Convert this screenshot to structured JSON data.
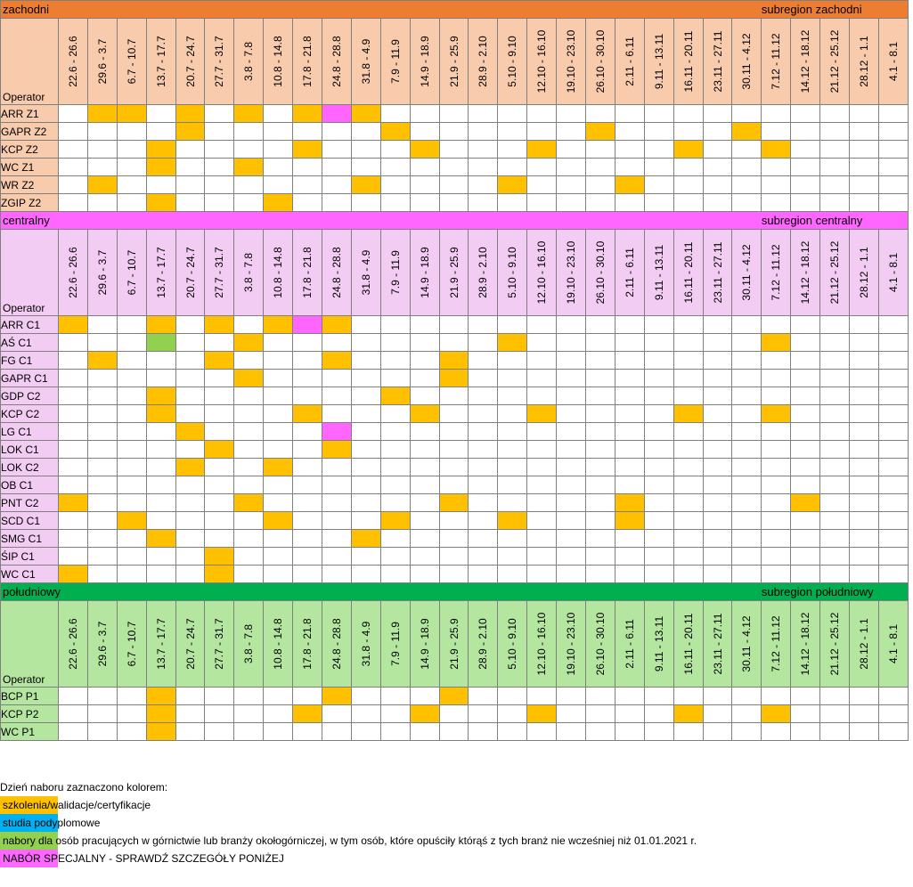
{
  "colors": {
    "orange": "#ffc000",
    "pink": "#ff66ff",
    "green": "#92d050",
    "blue": "#00b0f0",
    "zach_header": "#ed7d31",
    "zach_light": "#f8cbad",
    "cent_header": "#ff66ff",
    "cent_light": "#f2ccf2",
    "pol_header": "#00b050",
    "pol_light": "#b4e6a0"
  },
  "operator_label": "Operator",
  "dates": [
    "22.6 - 26.6",
    "29.6 - 3.7",
    "6.7 - 10.7",
    "13.7 - 17.7",
    "20.7 - 24.7",
    "27.7 - 31.7",
    "3.8 - 7.8",
    "10.8 - 14.8",
    "17.8 - 21.8",
    "24.8 - 28.8",
    "31.8 - 4.9",
    "7.9 - 11.9",
    "14.9 - 18.9",
    "21.9 - 25.9",
    "28.9 - 2.10",
    "5.10 - 9.10",
    "12.10 - 16.10",
    "19.10 - 23.10",
    "26.10 - 30.10",
    "2.11 - 6.11",
    "9.11 - 13.11",
    "16.11 - 20.11",
    "23.11 - 27.11",
    "30.11 - 4.12",
    "7.12 - 11.12",
    "14.12 - 18.12",
    "21.12 - 25.12",
    "28.12 - 1.1",
    "4.1 - 8.1"
  ],
  "sections": [
    {
      "key": "zach",
      "name": "zachodni",
      "subregion": "subregion zachodni",
      "rows": [
        {
          "op": "ARR Z1",
          "cells": {
            "1": "o",
            "2": "o",
            "4": "o",
            "6": "o",
            "8": "o",
            "9": "p",
            "10": "o"
          }
        },
        {
          "op": "GAPR Z2",
          "cells": {
            "4": "o",
            "11": "o",
            "18": "o",
            "23": "o"
          }
        },
        {
          "op": "KCP Z2",
          "cells": {
            "3": "o",
            "8": "o",
            "12": "o",
            "16": "o",
            "21": "o",
            "24": "o"
          }
        },
        {
          "op": "WC Z1",
          "cells": {
            "3": "o",
            "6": "o"
          }
        },
        {
          "op": "WR Z2",
          "cells": {
            "1": "o",
            "10": "o",
            "15": "o",
            "19": "o"
          }
        },
        {
          "op": "ZGIP Z2",
          "cells": {
            "3": "o",
            "7": "o"
          }
        }
      ]
    },
    {
      "key": "cent",
      "name": "centralny",
      "subregion": "subregion centralny",
      "rows": [
        {
          "op": "ARR C1",
          "cells": {
            "0": "o",
            "3": "o",
            "5": "o",
            "7": "o",
            "8": "p",
            "9": "o"
          }
        },
        {
          "op": "AŚ C1",
          "cells": {
            "3": "g",
            "6": "o",
            "15": "o",
            "24": "o"
          }
        },
        {
          "op": "FG C1",
          "cells": {
            "1": "o",
            "5": "o",
            "9": "o",
            "13": "o"
          }
        },
        {
          "op": "GAPR C1",
          "cells": {
            "6": "o",
            "13": "o"
          }
        },
        {
          "op": "GDP C2",
          "cells": {
            "3": "o",
            "11": "o"
          }
        },
        {
          "op": "KCP C2",
          "cells": {
            "3": "o",
            "8": "o",
            "12": "o",
            "16": "o",
            "21": "o",
            "24": "o"
          }
        },
        {
          "op": "LG C1",
          "cells": {
            "4": "o",
            "9": "p"
          }
        },
        {
          "op": "LOK C1",
          "cells": {
            "5": "o",
            "9": "o"
          }
        },
        {
          "op": "LOK C2",
          "cells": {
            "4": "o",
            "7": "o"
          }
        },
        {
          "op": "OB C1",
          "cells": {}
        },
        {
          "op": "PNT C2",
          "cells": {
            "0": "o",
            "6": "o",
            "13": "o",
            "19": "o",
            "25": "o"
          }
        },
        {
          "op": "SCD C1",
          "cells": {
            "2": "o",
            "7": "o",
            "11": "o",
            "15": "o",
            "19": "o"
          }
        },
        {
          "op": "SMG C1",
          "cells": {
            "3": "o",
            "10": "o"
          }
        },
        {
          "op": "ŚIP C1",
          "cells": {
            "5": "o"
          }
        },
        {
          "op": "WC C1",
          "cells": {
            "0": "o",
            "5": "o"
          }
        }
      ]
    },
    {
      "key": "pol",
      "name": "południowy",
      "subregion": "subregion południowy",
      "rows": [
        {
          "op": "BCP P1",
          "cells": {
            "3": "o",
            "9": "o",
            "13": "o"
          }
        },
        {
          "op": "KCP P2",
          "cells": {
            "3": "o",
            "8": "o",
            "12": "o",
            "16": "o",
            "21": "o",
            "24": "o"
          }
        },
        {
          "op": "WC P1",
          "cells": {
            "3": "o"
          }
        }
      ]
    }
  ],
  "legend": {
    "title": "Dzień naboru zaznaczono kolorem:",
    "items": [
      {
        "color": "orange",
        "text": "szkolenia/walidacje/certyfikacje"
      },
      {
        "color": "blue",
        "text": "studia podyplomowe"
      },
      {
        "color": "green",
        "text": "nabory dla osób pracujących w górnictwie lub branży okołogórniczej, w tym osób, które opuściły którąś z tych branż nie wcześniej niż 01.01.2021 r."
      },
      {
        "color": "pink",
        "text": "NABÓR SPECJALNY - SPRAWDŹ SZCZEGÓŁY PONIŻEJ"
      }
    ]
  }
}
